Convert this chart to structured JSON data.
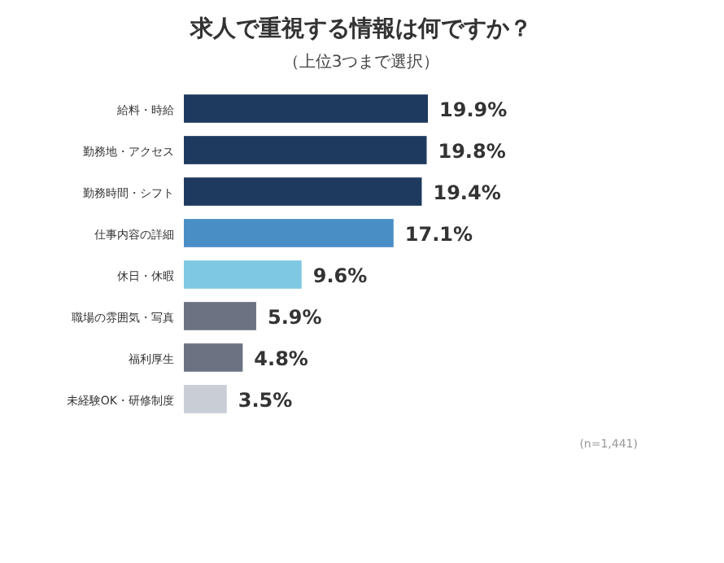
{
  "chart_data": {
    "type": "bar",
    "orientation": "horizontal",
    "title": "求人で重視する情報は何ですか？",
    "subtitle": "（上位3つまで選択）",
    "categories": [
      "給料・時給",
      "勤務地・アクセス",
      "勤務時間・シフト",
      "仕事内容の詳細",
      "休日・休暇",
      "職場の雰囲気・写真",
      "福利厚生",
      "未経験OK・研修制度"
    ],
    "values": [
      19.9,
      19.8,
      19.4,
      17.1,
      9.6,
      5.9,
      4.8,
      3.5
    ],
    "value_labels": [
      "19.9%",
      "19.8%",
      "19.4%",
      "17.1%",
      "9.6%",
      "5.9%",
      "4.8%",
      "3.5%"
    ],
    "colors": [
      "#1e3a5f",
      "#1e3a5f",
      "#1e3a5f",
      "#4a8ec6",
      "#7ec8e3",
      "#6b7282",
      "#6b7282",
      "#c9cdd6"
    ],
    "annotations": [
      "(n=1,441)"
    ]
  }
}
